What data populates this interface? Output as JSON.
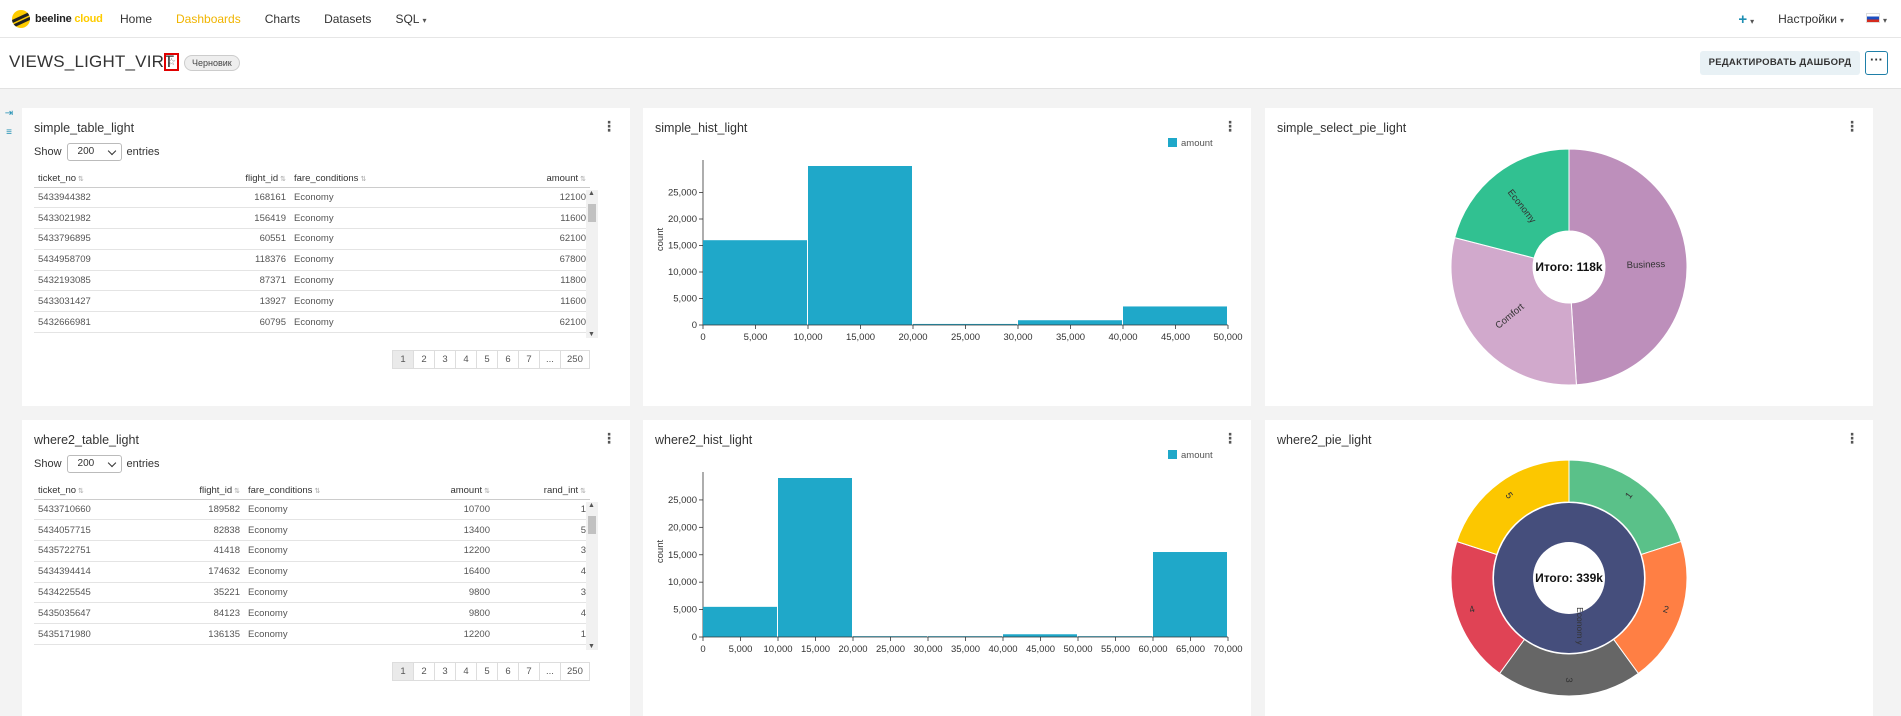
{
  "nav": {
    "logo_text": "beeline",
    "logo_suffix": "cloud",
    "links": [
      "Home",
      "Dashboards",
      "Charts",
      "Datasets",
      "SQL"
    ],
    "active": "Dashboards",
    "plus": "+",
    "settings": "Настройки"
  },
  "header": {
    "title": "VIEWS_LIGHT_VIRT",
    "badge": "Черновик",
    "edit_button": "РЕДАКТИРОВАТЬ ДАШБОРД",
    "more_button": "···"
  },
  "panels": {
    "t1": {
      "title": "simple_table_light",
      "show": "Show",
      "page_size": "200",
      "entries": "entries",
      "columns": [
        "ticket_no",
        "flight_id",
        "fare_conditions",
        "amount"
      ],
      "rows": [
        [
          "5433944382",
          "168161",
          "Economy",
          "12100"
        ],
        [
          "5433021982",
          "156419",
          "Economy",
          "11600"
        ],
        [
          "5433796895",
          "60551",
          "Economy",
          "62100"
        ],
        [
          "5434958709",
          "118376",
          "Economy",
          "67800"
        ],
        [
          "5432193085",
          "87371",
          "Economy",
          "11800"
        ],
        [
          "5433031427",
          "13927",
          "Economy",
          "11600"
        ],
        [
          "5432666981",
          "60795",
          "Economy",
          "62100"
        ]
      ],
      "pages": [
        "1",
        "2",
        "3",
        "4",
        "5",
        "6",
        "7",
        "...",
        "250"
      ]
    },
    "t2": {
      "title": "where2_table_light",
      "show": "Show",
      "page_size": "200",
      "entries": "entries",
      "columns": [
        "ticket_no",
        "flight_id",
        "fare_conditions",
        "amount",
        "rand_int"
      ],
      "rows": [
        [
          "5433710660",
          "189582",
          "Economy",
          "10700",
          "1"
        ],
        [
          "5434057715",
          "82838",
          "Economy",
          "13400",
          "5"
        ],
        [
          "5435722751",
          "41418",
          "Economy",
          "12200",
          "3"
        ],
        [
          "5434394414",
          "174632",
          "Economy",
          "16400",
          "4"
        ],
        [
          "5434225545",
          "35221",
          "Economy",
          "9800",
          "3"
        ],
        [
          "5435035647",
          "84123",
          "Economy",
          "9800",
          "4"
        ],
        [
          "5435171980",
          "136135",
          "Economy",
          "12200",
          "1"
        ]
      ],
      "pages": [
        "1",
        "2",
        "3",
        "4",
        "5",
        "6",
        "7",
        "...",
        "250"
      ]
    },
    "h1": {
      "title": "simple_hist_light"
    },
    "h2": {
      "title": "where2_hist_light"
    },
    "p1": {
      "title": "simple_select_pie_light"
    },
    "p2": {
      "title": "where2_pie_light"
    }
  },
  "chart_data": [
    {
      "id": "h1",
      "type": "bar",
      "legend": "amount",
      "ylabel": "count",
      "xlim": [
        0,
        50000
      ],
      "ylim": [
        0,
        30000
      ],
      "xticks": [
        0,
        5000,
        10000,
        15000,
        20000,
        25000,
        30000,
        35000,
        40000,
        45000,
        50000
      ],
      "yticks": [
        0,
        5000,
        10000,
        15000,
        20000,
        25000
      ],
      "bins": [
        {
          "x0": 0,
          "x1": 10000,
          "count": 16000
        },
        {
          "x0": 10000,
          "x1": 20000,
          "count": 30000
        },
        {
          "x0": 20000,
          "x1": 30000,
          "count": 200
        },
        {
          "x0": 30000,
          "x1": 40000,
          "count": 900
        },
        {
          "x0": 40000,
          "x1": 50000,
          "count": 3500
        }
      ],
      "color": "#1fa8c9"
    },
    {
      "id": "h2",
      "type": "bar",
      "legend": "amount",
      "ylabel": "count",
      "xlim": [
        0,
        70000
      ],
      "ylim": [
        0,
        29000
      ],
      "xticks": [
        0,
        5000,
        10000,
        15000,
        20000,
        25000,
        30000,
        35000,
        40000,
        45000,
        50000,
        55000,
        60000,
        65000,
        70000
      ],
      "yticks": [
        0,
        5000,
        10000,
        15000,
        20000,
        25000
      ],
      "bins": [
        {
          "x0": 0,
          "x1": 10000,
          "count": 5500
        },
        {
          "x0": 10000,
          "x1": 20000,
          "count": 29000
        },
        {
          "x0": 20000,
          "x1": 30000,
          "count": 150
        },
        {
          "x0": 30000,
          "x1": 40000,
          "count": 150
        },
        {
          "x0": 40000,
          "x1": 50000,
          "count": 500
        },
        {
          "x0": 50000,
          "x1": 60000,
          "count": 150
        },
        {
          "x0": 60000,
          "x1": 70000,
          "count": 15500
        }
      ],
      "color": "#1fa8c9"
    },
    {
      "id": "p1",
      "type": "pie",
      "center_label": "Итого: 118k",
      "slices": [
        {
          "label": "Business",
          "value": 0.49,
          "color": "#bd8fbb"
        },
        {
          "label": "Comfort",
          "value": 0.3,
          "color": "#d1a9cc"
        },
        {
          "label": "Economy",
          "value": 0.21,
          "color": "#31c191"
        }
      ]
    },
    {
      "id": "p2",
      "type": "pie",
      "center_label": "Итого: 339k",
      "inner": {
        "label": "Econom y",
        "color": "#454e7c"
      },
      "slices": [
        {
          "label": "1",
          "value": 0.2,
          "color": "#5ac189"
        },
        {
          "label": "2",
          "value": 0.2,
          "color": "#ff7f44"
        },
        {
          "label": "3",
          "value": 0.2,
          "color": "#666666"
        },
        {
          "label": "4",
          "value": 0.2,
          "color": "#e04355"
        },
        {
          "label": "5",
          "value": 0.2,
          "color": "#fcc700"
        }
      ]
    }
  ]
}
